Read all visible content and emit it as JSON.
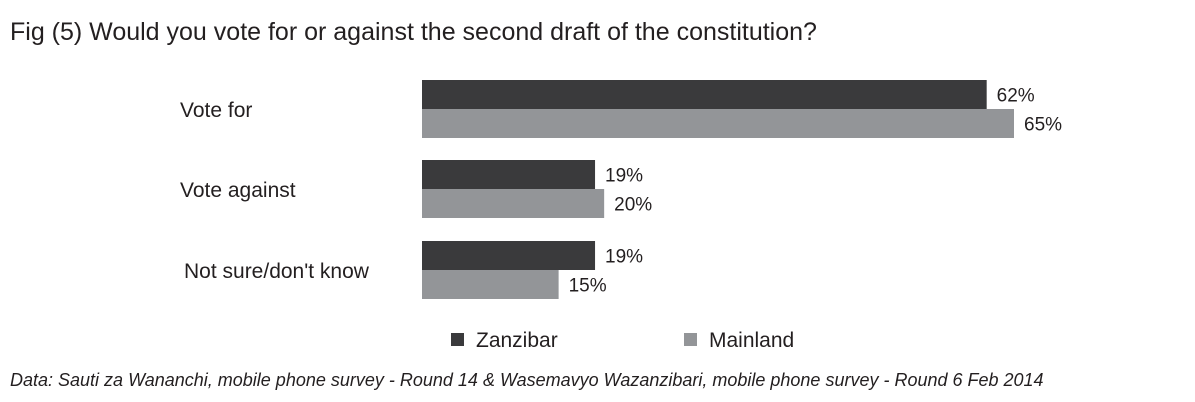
{
  "chart_data": {
    "type": "bar",
    "orientation": "horizontal",
    "title": "Fig (5) Would you vote for or against the second draft of the constitution?",
    "categories": [
      "Vote for",
      "Vote against",
      "Not sure/don't know"
    ],
    "series": [
      {
        "name": "Zanzibar",
        "values": [
          62,
          19,
          19
        ],
        "value_labels": [
          "62%",
          "19%",
          "19%"
        ],
        "color": "#3a3a3c"
      },
      {
        "name": "Mainland",
        "values": [
          65,
          20,
          15
        ],
        "value_labels": [
          "65%",
          "20%",
          "15%"
        ],
        "color": "#939598"
      }
    ],
    "xlim": [
      0,
      65
    ],
    "grid": false,
    "legend": "bottom",
    "source": "Data: Sauti za Wananchi, mobile phone survey - Round 14 & Wasemavyo Wazanzibari, mobile phone survey - Round 6 Feb 2014"
  }
}
